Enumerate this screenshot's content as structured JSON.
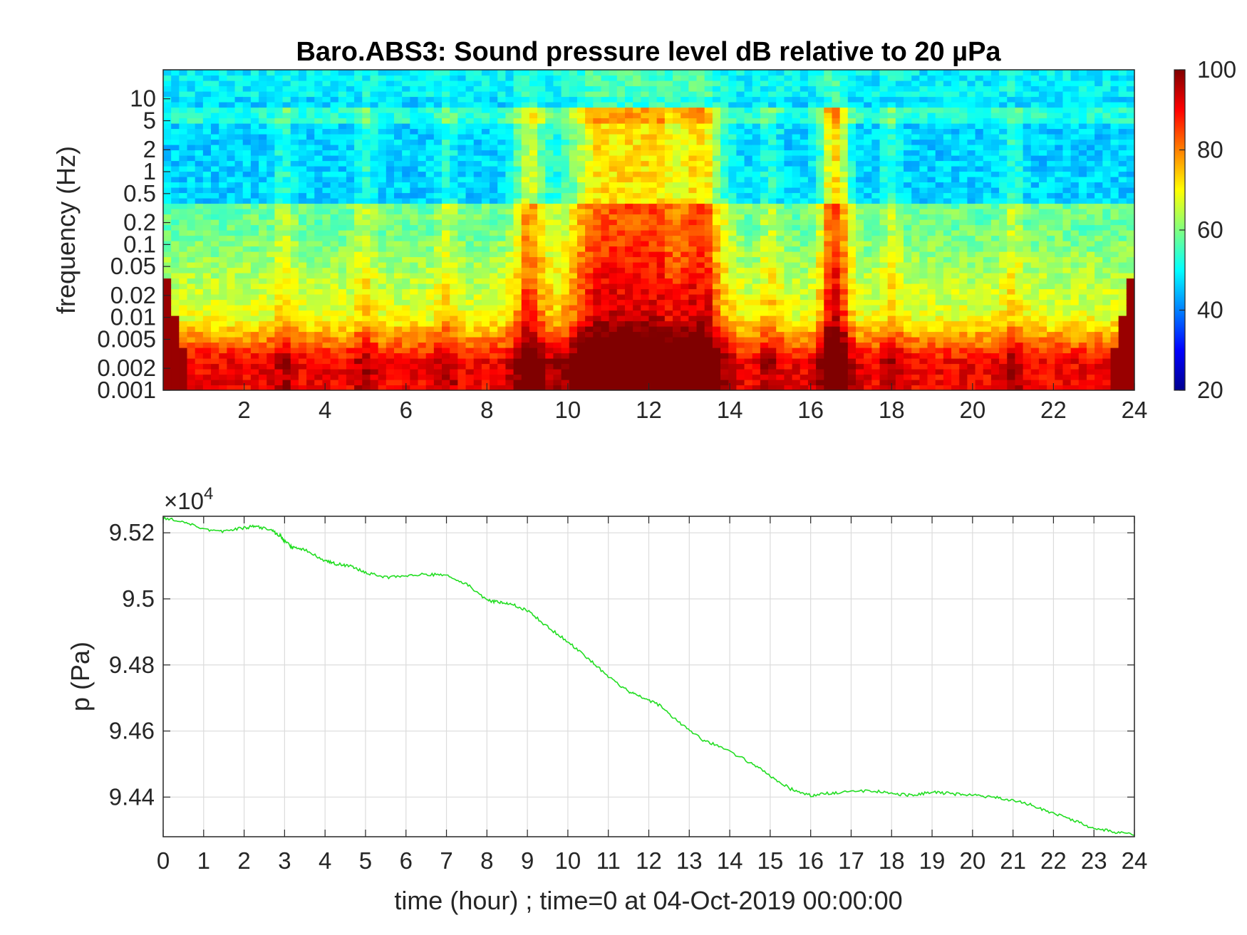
{
  "chart_data": [
    {
      "type": "heatmap",
      "title": "Baro.ABS3: Sound pressure level dB relative to 20 µPa",
      "xlabel": "",
      "ylabel": "frequency (Hz)",
      "xlim": [
        0,
        24
      ],
      "xticks": [
        "2",
        "4",
        "6",
        "8",
        "10",
        "12",
        "14",
        "16",
        "18",
        "20",
        "22",
        "24"
      ],
      "yscale": "log",
      "ylim": [
        0.001,
        25
      ],
      "yticks": [
        "0.001",
        "0.002",
        "0.005",
        "0.01",
        "0.02",
        "0.05",
        "0.1",
        "0.2",
        "0.5",
        "1",
        "2",
        "5",
        "10"
      ],
      "colormap": "jet",
      "colorbar": {
        "label": "dB relative to 20 µPa",
        "range": [
          20,
          100
        ],
        "ticks": [
          "20",
          "40",
          "60",
          "80",
          "100"
        ]
      },
      "time_profile": {
        "description": "overall activity level versus hour (0..1), strongest near 11-13 h and 16.5 h",
        "peaks_hours": [
          3,
          5,
          7,
          9,
          11,
          12,
          13.3,
          15,
          16.6,
          18,
          21
        ]
      }
    },
    {
      "type": "line",
      "title": "",
      "xlabel": "time (hour) ; time=0 at 04-Oct-2019 00:00:00",
      "ylabel": "p (Pa)",
      "exponent_label": "×10",
      "exponent_power": "4",
      "xlim": [
        0,
        24
      ],
      "ylim": [
        9.428,
        9.525
      ],
      "xticks": [
        "0",
        "1",
        "2",
        "3",
        "4",
        "5",
        "6",
        "7",
        "8",
        "9",
        "10",
        "11",
        "12",
        "13",
        "14",
        "15",
        "16",
        "17",
        "18",
        "19",
        "20",
        "21",
        "22",
        "23",
        "24"
      ],
      "yticks": [
        "9.44",
        "9.46",
        "9.48",
        "9.5",
        "9.52"
      ],
      "grid": true,
      "line_color": "#22dd22",
      "series": [
        {
          "x": [
            0,
            0.5,
            1,
            1.5,
            2,
            2.3,
            2.7,
            2.9,
            3.0,
            3.2,
            3.5,
            4.0,
            4.3,
            4.6,
            5.0,
            5.5,
            6.0,
            6.5,
            7.0,
            7.5,
            8.0,
            8.3,
            8.6,
            9.0,
            9.5,
            10.0,
            10.5,
            11.0,
            11.5,
            11.8,
            12.3,
            12.8,
            13.3,
            13.8,
            14.5,
            15.0,
            15.5,
            16.0,
            16.3,
            16.8,
            17.5,
            18.0,
            18.5,
            19.0,
            19.5,
            20.0,
            20.5,
            21.0,
            21.5,
            22.0,
            22.5,
            23.0,
            23.5,
            24.0
          ],
          "y": [
            9.5245,
            9.5235,
            9.521,
            9.5205,
            9.5215,
            9.522,
            9.5205,
            9.519,
            9.5175,
            9.5155,
            9.515,
            9.5115,
            9.5105,
            9.51,
            9.508,
            9.5065,
            9.507,
            9.5075,
            9.507,
            9.5045,
            9.4995,
            9.499,
            9.4985,
            9.4965,
            9.4915,
            9.487,
            9.482,
            9.4765,
            9.472,
            9.4705,
            9.4675,
            9.462,
            9.4575,
            9.455,
            9.4505,
            9.4465,
            9.4425,
            9.4405,
            9.441,
            9.4415,
            9.442,
            9.441,
            9.4405,
            9.4415,
            9.441,
            9.4405,
            9.44,
            9.439,
            9.4375,
            9.435,
            9.433,
            9.4305,
            9.4295,
            9.4285
          ]
        }
      ]
    }
  ]
}
